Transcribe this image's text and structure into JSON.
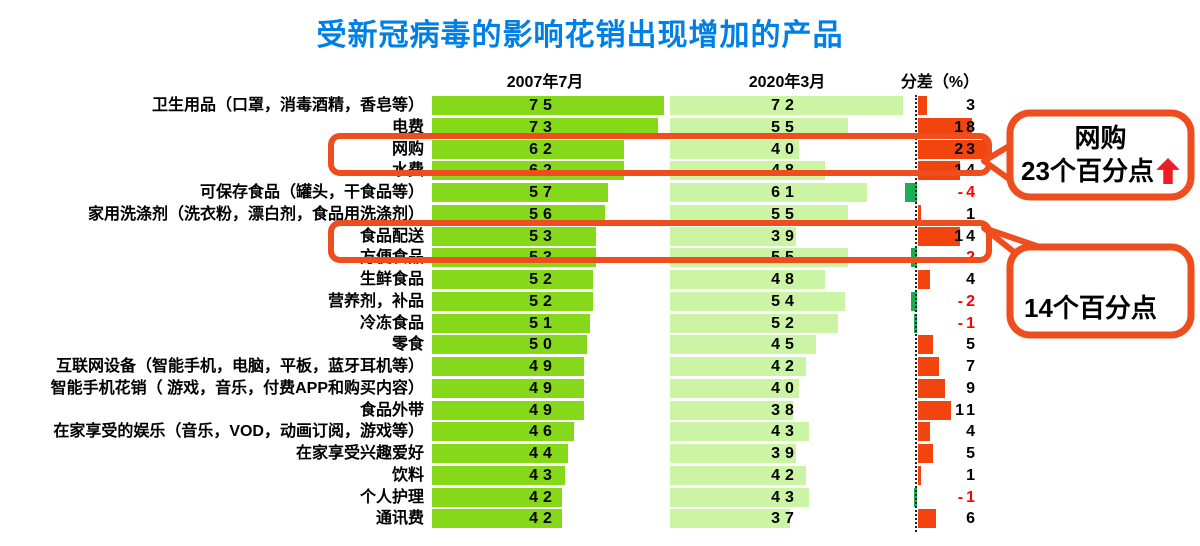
{
  "title": "受新冠病毒的影响花销出现增加的产品",
  "headers": {
    "col1": "2007年7月",
    "col2": "2020年3月",
    "diff": "分差（%）"
  },
  "chart_data": {
    "type": "bar",
    "orientation": "horizontal",
    "title": "受新冠病毒的影响花销出现增加的产品",
    "categories": [
      "卫生用品（口罩，消毒酒精，香皂等）",
      "电费",
      "网购",
      "水费",
      "可保存食品（罐头，干食品等）",
      "家用洗涤剂（洗衣粉，漂白剂，食品用洗涤剂）",
      "食品配送",
      "方便食品",
      "生鲜食品",
      "营养剂，补品",
      "冷冻食品",
      "零食",
      "互联网设备（智能手机，电脑，平板，蓝牙耳机等）",
      "智能手机花销（ 游戏，音乐，付费APP和购买内容）",
      "食品外带",
      "在家享受的娱乐（音乐，VOD，动画订阅，游戏等）",
      "在家享受兴趣爱好",
      "饮料",
      "个人护理",
      "通讯费"
    ],
    "series": [
      {
        "name": "2007年7月",
        "values": [
          75,
          73,
          62,
          62,
          57,
          56,
          53,
          53,
          52,
          52,
          51,
          50,
          49,
          49,
          49,
          46,
          44,
          43,
          42,
          42
        ]
      },
      {
        "name": "2020年3月",
        "values": [
          72,
          55,
          40,
          48,
          61,
          55,
          39,
          55,
          48,
          54,
          52,
          45,
          42,
          40,
          38,
          43,
          39,
          42,
          43,
          37
        ]
      },
      {
        "name": "分差（%）",
        "values": [
          3,
          18,
          23,
          14,
          -4,
          1,
          14,
          -2,
          4,
          -2,
          -1,
          5,
          7,
          9,
          11,
          4,
          5,
          1,
          -1,
          6
        ]
      }
    ],
    "value_range": [
      0,
      100
    ],
    "highlight_indices": [
      2,
      6
    ],
    "highlighted_categories": [
      "网购",
      "食品配送"
    ],
    "legend": "none",
    "grid": "off"
  },
  "callouts": [
    {
      "line1": "网购",
      "line2": "23个百分点",
      "icon": "up-arrow"
    },
    {
      "text": "14个百分点"
    }
  ],
  "colors": {
    "title": "#0080E6",
    "col1_bar": "#86D81A",
    "col2_bar": "#CBF4A4",
    "diff_positive": "#F2440E",
    "diff_negative": "#1BAD54",
    "highlight": "#EE4D1E",
    "negative_text": "#FF0000",
    "arrow": "#EC1C24"
  }
}
